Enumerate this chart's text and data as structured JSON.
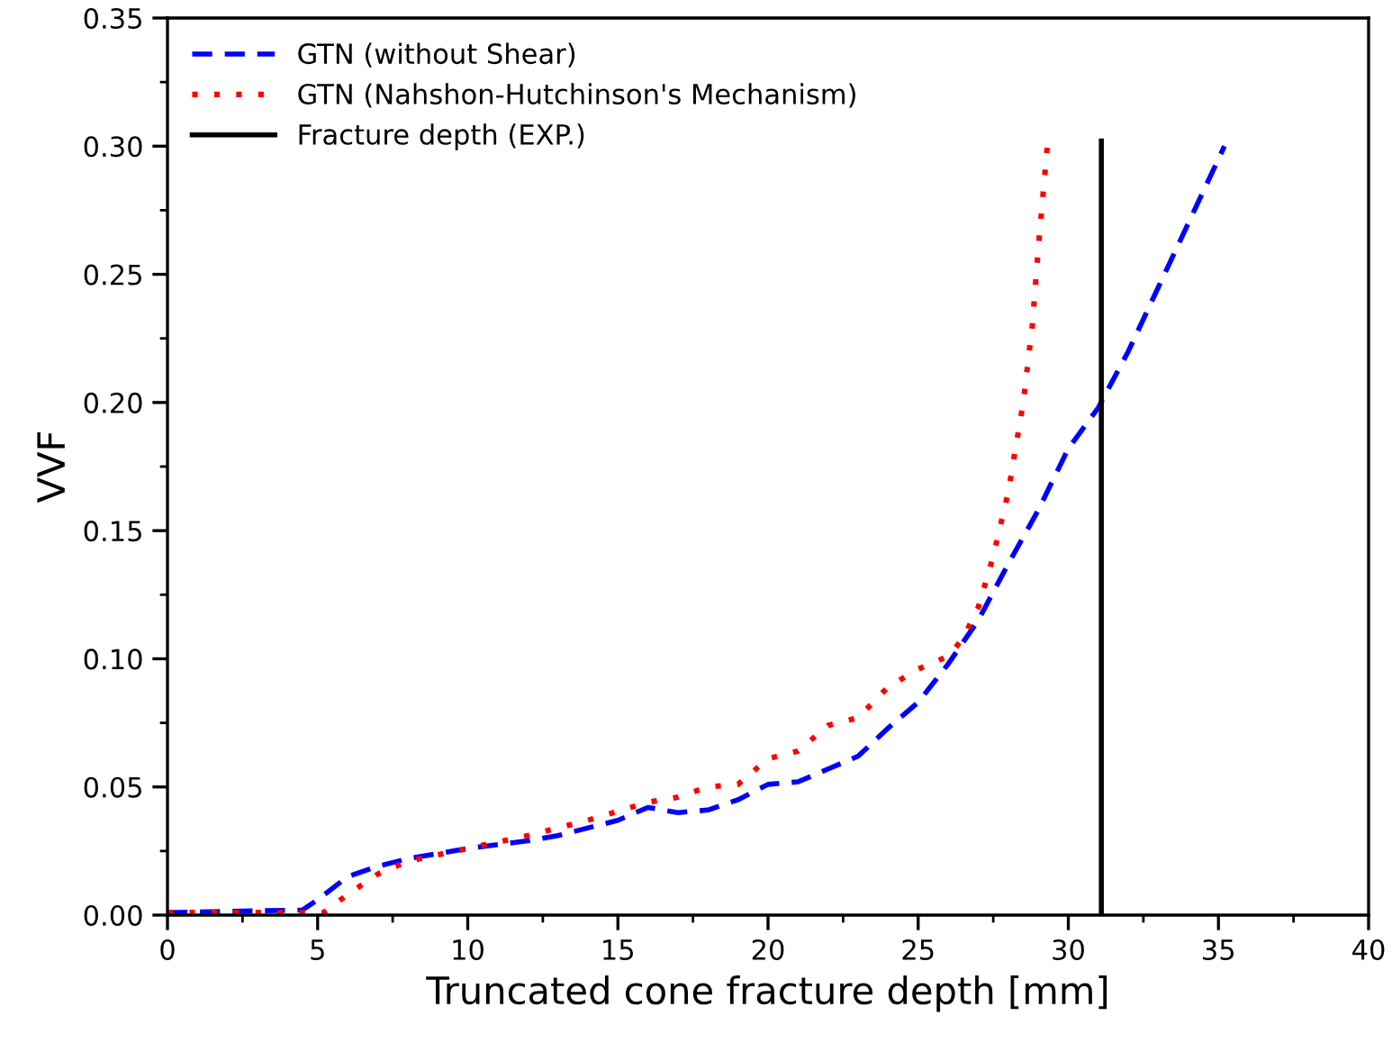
{
  "chart_data": {
    "type": "line",
    "xlabel": "Truncated cone fracture depth [mm]",
    "ylabel": "VVF",
    "xlim": [
      0,
      40
    ],
    "ylim": [
      0,
      0.35
    ],
    "xticks": [
      0,
      5,
      10,
      15,
      20,
      25,
      30,
      35,
      40
    ],
    "yticks": [
      {
        "value": 0,
        "label": "0.00"
      },
      {
        "value": 0.05,
        "label": "0.05"
      },
      {
        "value": 0.1,
        "label": "0.10"
      },
      {
        "value": 0.15,
        "label": "0.15"
      },
      {
        "value": 0.2,
        "label": "0.20"
      },
      {
        "value": 0.25,
        "label": "0.25"
      },
      {
        "value": 0.3,
        "label": "0.30"
      },
      {
        "value": 0.35,
        "label": "0.35"
      }
    ],
    "grid": false,
    "legend": "top left",
    "series": [
      {
        "name": "GTN (without Shear)",
        "color": "#0000ff",
        "line_style": "dashed",
        "x": [
          0,
          4.5,
          5,
          6,
          7,
          8,
          10,
          12,
          13,
          15,
          16,
          17,
          18,
          19,
          20,
          21,
          22,
          23,
          24,
          25,
          26,
          27,
          28,
          29,
          30,
          31,
          32,
          33,
          34,
          35.2
        ],
        "values": [
          0.001,
          0.002,
          0.006,
          0.015,
          0.019,
          0.022,
          0.026,
          0.029,
          0.031,
          0.037,
          0.042,
          0.04,
          0.041,
          0.045,
          0.051,
          0.052,
          0.057,
          0.062,
          0.073,
          0.083,
          0.098,
          0.115,
          0.137,
          0.158,
          0.182,
          0.198,
          0.22,
          0.245,
          0.27,
          0.3
        ]
      },
      {
        "name": "GTN (Nahshon-Hutchinson's Mechanism)",
        "color": "#ff0000",
        "line_style": "dotted",
        "x": [
          0,
          5.2,
          6,
          7,
          8,
          10,
          12,
          14,
          16,
          17,
          18,
          19,
          20,
          21,
          22,
          23,
          24,
          25,
          26,
          26.5,
          27,
          27.5,
          28,
          28.5,
          28.8,
          29,
          29.3
        ],
        "values": [
          0.001,
          0.001,
          0.008,
          0.016,
          0.021,
          0.026,
          0.031,
          0.037,
          0.044,
          0.046,
          0.05,
          0.051,
          0.061,
          0.064,
          0.074,
          0.077,
          0.089,
          0.096,
          0.101,
          0.108,
          0.12,
          0.14,
          0.165,
          0.2,
          0.23,
          0.26,
          0.3
        ]
      },
      {
        "name": "Fracture depth (EXP.)",
        "color": "#000000",
        "line_style": "solid",
        "x": [
          31.1,
          31.1
        ],
        "values": [
          0,
          0.302
        ]
      }
    ]
  }
}
